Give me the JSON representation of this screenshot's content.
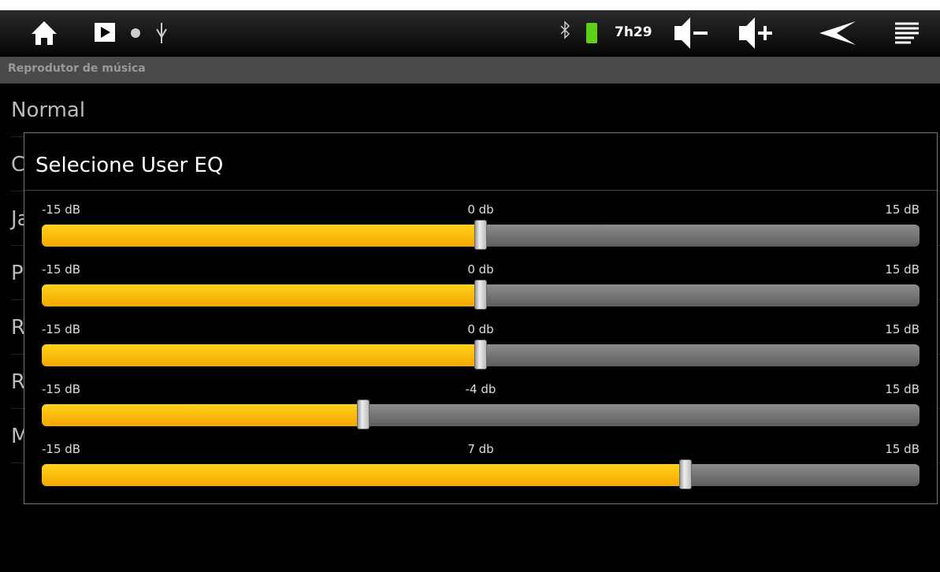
{
  "status_bar": {
    "time": "7h29"
  },
  "header": {
    "title": "Reprodutor de música"
  },
  "list": {
    "items": [
      "Normal",
      "Clássico",
      "Jazz",
      "Pop",
      "Rock",
      "Reforço de graves",
      "Modo de EQ do usuário"
    ]
  },
  "dialog": {
    "title": "Selecione User EQ",
    "sliders": [
      {
        "min": {
          "value": -15,
          "label": "-15 dB"
        },
        "value": {
          "value": 0,
          "label": "0 db"
        },
        "max": {
          "value": 15,
          "label": "15 dB"
        }
      },
      {
        "min": {
          "value": -15,
          "label": "-15 dB"
        },
        "value": {
          "value": 0,
          "label": "0 db"
        },
        "max": {
          "value": 15,
          "label": "15 dB"
        }
      },
      {
        "min": {
          "value": -15,
          "label": "-15 dB"
        },
        "value": {
          "value": 0,
          "label": "0 db"
        },
        "max": {
          "value": 15,
          "label": "15 dB"
        }
      },
      {
        "min": {
          "value": -15,
          "label": "-15 dB"
        },
        "value": {
          "value": -4,
          "label": "-4 db"
        },
        "max": {
          "value": 15,
          "label": "15 dB"
        }
      },
      {
        "min": {
          "value": -15,
          "label": "-15 dB"
        },
        "value": {
          "value": 7,
          "label": "7 db"
        },
        "max": {
          "value": 15,
          "label": "15 dB"
        }
      }
    ]
  }
}
